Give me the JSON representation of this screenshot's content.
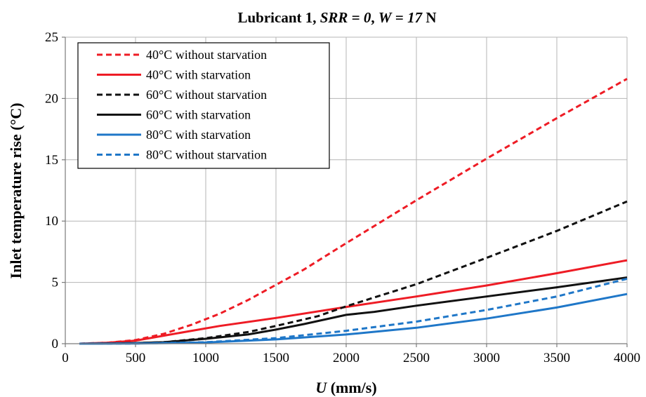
{
  "chart_data": {
    "type": "line",
    "title_parts": [
      {
        "text": "Lubricant 1, ",
        "italic": false
      },
      {
        "text": "SRR",
        "italic": true
      },
      {
        "text": " = ",
        "italic": false
      },
      {
        "text": "0",
        "italic": true
      },
      {
        "text": ", ",
        "italic": false
      },
      {
        "text": "W",
        "italic": true
      },
      {
        "text": " = ",
        "italic": false
      },
      {
        "text": "17",
        "italic": true
      },
      {
        "text": " N",
        "italic": false
      }
    ],
    "xlabel_parts": [
      {
        "text": "U",
        "italic": true
      },
      {
        "text": " (mm/s)",
        "italic": false
      }
    ],
    "ylabel": "Inlet temperature rise (°C)",
    "xlim": [
      0,
      4000
    ],
    "ylim": [
      0,
      25
    ],
    "xticks": [
      0,
      500,
      1000,
      1500,
      2000,
      2500,
      3000,
      3500,
      4000
    ],
    "yticks": [
      0,
      5,
      10,
      15,
      20,
      25
    ],
    "grid": true,
    "legend_position": "top-left",
    "series": [
      {
        "name": "40°C without starvation",
        "color": "#ee1c25",
        "dashed": true,
        "points": [
          [
            100,
            0
          ],
          [
            300,
            0.08
          ],
          [
            500,
            0.3
          ],
          [
            700,
            0.8
          ],
          [
            900,
            1.55
          ],
          [
            1100,
            2.45
          ],
          [
            1300,
            3.55
          ],
          [
            1500,
            4.8
          ],
          [
            1700,
            6.05
          ],
          [
            2000,
            8.2
          ],
          [
            2500,
            11.7
          ],
          [
            3000,
            15.1
          ],
          [
            3500,
            18.4
          ],
          [
            4000,
            21.6
          ]
        ]
      },
      {
        "name": "40°C with starvation",
        "color": "#ee1c25",
        "dashed": false,
        "points": [
          [
            100,
            0
          ],
          [
            300,
            0.08
          ],
          [
            500,
            0.25
          ],
          [
            700,
            0.65
          ],
          [
            900,
            1.05
          ],
          [
            1100,
            1.45
          ],
          [
            1500,
            2.1
          ],
          [
            2000,
            3.0
          ],
          [
            2500,
            3.85
          ],
          [
            3000,
            4.75
          ],
          [
            3500,
            5.75
          ],
          [
            4000,
            6.8
          ]
        ]
      },
      {
        "name": "60°C without starvation",
        "color": "#111111",
        "dashed": true,
        "points": [
          [
            100,
            0
          ],
          [
            500,
            0.05
          ],
          [
            700,
            0.12
          ],
          [
            1000,
            0.45
          ],
          [
            1300,
            0.95
          ],
          [
            1500,
            1.45
          ],
          [
            1800,
            2.25
          ],
          [
            2000,
            3.05
          ],
          [
            2500,
            4.85
          ],
          [
            3000,
            7.0
          ],
          [
            3500,
            9.2
          ],
          [
            4000,
            11.6
          ]
        ]
      },
      {
        "name": "60°C with starvation",
        "color": "#111111",
        "dashed": false,
        "points": [
          [
            100,
            0
          ],
          [
            500,
            0.05
          ],
          [
            700,
            0.12
          ],
          [
            1000,
            0.4
          ],
          [
            1300,
            0.75
          ],
          [
            1500,
            1.15
          ],
          [
            1700,
            1.6
          ],
          [
            2000,
            2.35
          ],
          [
            2200,
            2.6
          ],
          [
            2500,
            3.1
          ],
          [
            3000,
            3.85
          ],
          [
            3500,
            4.6
          ],
          [
            4000,
            5.4
          ]
        ]
      },
      {
        "name": "80°C with starvation",
        "color": "#1f77c8",
        "dashed": false,
        "points": [
          [
            100,
            0
          ],
          [
            500,
            0.02
          ],
          [
            1000,
            0.1
          ],
          [
            1500,
            0.35
          ],
          [
            2000,
            0.75
          ],
          [
            2500,
            1.3
          ],
          [
            3000,
            2.05
          ],
          [
            3500,
            2.95
          ],
          [
            4000,
            4.05
          ]
        ]
      },
      {
        "name": "80°C without starvation",
        "color": "#1f77c8",
        "dashed": true,
        "points": [
          [
            100,
            0
          ],
          [
            500,
            0.02
          ],
          [
            1000,
            0.12
          ],
          [
            1500,
            0.45
          ],
          [
            2000,
            1.05
          ],
          [
            2500,
            1.8
          ],
          [
            3000,
            2.75
          ],
          [
            3500,
            3.85
          ],
          [
            4000,
            5.3
          ]
        ]
      }
    ]
  }
}
